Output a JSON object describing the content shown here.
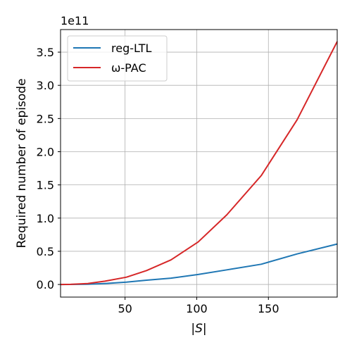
{
  "chart_data": {
    "type": "line",
    "xlabel": "|S|",
    "ylabel": "Required number of episode",
    "y_multiplier": "1e11",
    "xlim": [
      5,
      198
    ],
    "ylim": [
      -0.19,
      3.84
    ],
    "x_ticks": [
      50,
      100,
      150
    ],
    "y_ticks": [
      0.0,
      0.5,
      1.0,
      1.5,
      2.0,
      2.5,
      3.0,
      3.5
    ],
    "grid": true,
    "legend_position": "upper-left",
    "series": [
      {
        "name": "reg-LTL",
        "color": "#1f77b4",
        "x": [
          5,
          12,
          24,
          36,
          51,
          65,
          82,
          101,
          121,
          145,
          170,
          198
        ],
        "y": [
          0.0,
          0.001,
          0.004,
          0.015,
          0.035,
          0.065,
          0.095,
          0.15,
          0.22,
          0.305,
          0.46,
          0.61
        ]
      },
      {
        "name": "ω-PAC",
        "color": "#d62728",
        "x": [
          5,
          12,
          24,
          36,
          51,
          65,
          82,
          101,
          121,
          145,
          170,
          198
        ],
        "y": [
          0.0,
          0.002,
          0.015,
          0.05,
          0.11,
          0.21,
          0.37,
          0.64,
          1.05,
          1.64,
          2.48,
          3.66
        ]
      }
    ]
  }
}
